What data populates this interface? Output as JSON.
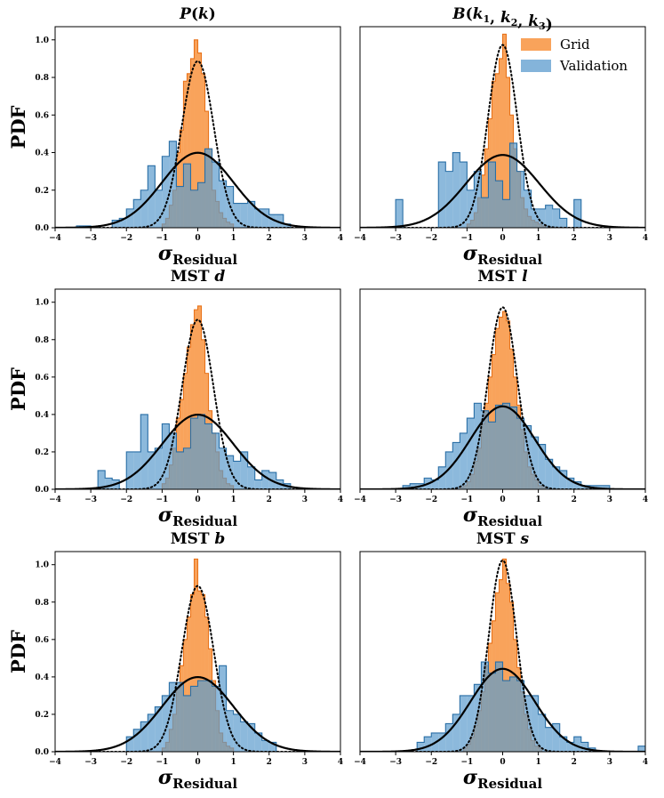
{
  "figure": {
    "ylabel": "PDF",
    "xlabel_symbol": "σ",
    "xlabel_sub": "Residual",
    "legend": {
      "grid": "Grid",
      "validation": "Validation",
      "placement": "top-right of panel 2"
    }
  },
  "colors": {
    "grid_fill": "#f9a35b",
    "grid_edge": "#e8731b",
    "val_fill": "#5b9bcd",
    "val_edge": "#2a6fa6",
    "overlap": "#8c8f8a"
  },
  "chart_data": [
    {
      "type": "histogram",
      "title_parts": [
        {
          "t": "P",
          "it": true
        },
        {
          "t": "(",
          "it": false
        },
        {
          "t": "k",
          "it": true
        },
        {
          "t": ")",
          "it": false
        }
      ],
      "xlim": [
        -4,
        4
      ],
      "ylim": [
        0,
        1.07
      ],
      "xticks": [
        "−4",
        "−3",
        "−2",
        "−1",
        "0",
        "1",
        "2",
        "3",
        "4"
      ],
      "yticks": [
        "0.0",
        "0.2",
        "0.4",
        "0.6",
        "0.8",
        "1.0"
      ],
      "grid": false,
      "grid_hist": {
        "edges": [
          -1.0,
          -0.9,
          -0.8,
          -0.7,
          -0.6,
          -0.5,
          -0.4,
          -0.3,
          -0.2,
          -0.1,
          0.0,
          0.1,
          0.2,
          0.3,
          0.4,
          0.5,
          0.6,
          0.7,
          0.8,
          0.9,
          1.0
        ],
        "density": [
          0.02,
          0.05,
          0.12,
          0.2,
          0.4,
          0.52,
          0.78,
          0.82,
          0.9,
          1.0,
          0.93,
          0.82,
          0.62,
          0.42,
          0.2,
          0.14,
          0.08,
          0.05,
          0.03,
          0.02
        ]
      },
      "val_hist": {
        "edges": [
          -3.4,
          -3.2,
          -3.0,
          -2.8,
          -2.6,
          -2.4,
          -2.2,
          -2.0,
          -1.8,
          -1.6,
          -1.4,
          -1.2,
          -1.0,
          -0.8,
          -0.6,
          -0.4,
          -0.2,
          0.0,
          0.2,
          0.4,
          0.6,
          0.8,
          1.0,
          1.2,
          1.4,
          1.6,
          1.8,
          2.0,
          2.2,
          2.4,
          2.6
        ],
        "density": [
          0.01,
          0.01,
          0,
          0,
          0,
          0.04,
          0.05,
          0.1,
          0.15,
          0.2,
          0.33,
          0.2,
          0.38,
          0.46,
          0.22,
          0.34,
          0.2,
          0.24,
          0.42,
          0.35,
          0.25,
          0.22,
          0.13,
          0.13,
          0.14,
          0.1,
          0.1,
          0.07,
          0.07,
          0.02
        ]
      },
      "gaussian_solid": {
        "mu": 0,
        "sigma": 1.0
      },
      "gaussian_dotted": {
        "mu": 0,
        "sigma": 0.45
      }
    },
    {
      "type": "histogram",
      "title_parts": [
        {
          "t": "B",
          "it": true
        },
        {
          "t": "(",
          "it": false
        },
        {
          "t": "k",
          "it": true
        },
        {
          "t": "1",
          "it": false,
          "sub": true
        },
        {
          "t": ", ",
          "it": false
        },
        {
          "t": "k",
          "it": true
        },
        {
          "t": "2",
          "it": false,
          "sub": true
        },
        {
          "t": ", ",
          "it": false
        },
        {
          "t": "k",
          "it": true
        },
        {
          "t": "3",
          "it": false,
          "sub": true
        },
        {
          "t": ")",
          "it": false
        }
      ],
      "xlim": [
        -4,
        4
      ],
      "ylim": [
        0,
        1.07
      ],
      "xticks": [
        "−4",
        "−3",
        "−2",
        "−1",
        "0",
        "1",
        "2",
        "3",
        "4"
      ],
      "yticks": [],
      "grid": false,
      "legend": true,
      "grid_hist": {
        "edges": [
          -1.0,
          -0.9,
          -0.8,
          -0.7,
          -0.6,
          -0.5,
          -0.4,
          -0.3,
          -0.2,
          -0.1,
          0.0,
          0.1,
          0.2,
          0.3,
          0.4,
          0.5,
          0.6,
          0.7,
          0.8,
          0.9,
          1.0,
          1.1,
          1.2
        ],
        "density": [
          0.02,
          0.04,
          0.08,
          0.16,
          0.28,
          0.42,
          0.58,
          0.78,
          0.82,
          0.9,
          1.03,
          0.8,
          0.6,
          0.42,
          0.3,
          0.16,
          0.1,
          0.06,
          0.04,
          0.03,
          0.02,
          0.01
        ]
      },
      "val_hist": {
        "edges": [
          -3.0,
          -2.8,
          -2.6,
          -2.4,
          -2.2,
          -2.0,
          -1.8,
          -1.6,
          -1.4,
          -1.2,
          -1.0,
          -0.8,
          -0.6,
          -0.4,
          -0.2,
          0.0,
          0.2,
          0.4,
          0.6,
          0.8,
          1.0,
          1.2,
          1.4,
          1.6,
          1.8,
          2.0,
          2.2,
          2.4
        ],
        "density": [
          0.15,
          0,
          0,
          0,
          0,
          0,
          0.35,
          0.3,
          0.4,
          0.35,
          0.2,
          0.3,
          0.16,
          0.35,
          0.25,
          0.15,
          0.45,
          0.3,
          0.2,
          0.1,
          0.1,
          0.12,
          0.1,
          0.05,
          0,
          0.15,
          0
        ]
      },
      "gaussian_solid": {
        "mu": 0,
        "sigma": 1.03
      },
      "gaussian_dotted": {
        "mu": 0,
        "sigma": 0.41
      }
    },
    {
      "type": "histogram",
      "title_parts": [
        {
          "t": "MST ",
          "it": false
        },
        {
          "t": "d",
          "it": true
        }
      ],
      "xlim": [
        -4,
        4
      ],
      "ylim": [
        0,
        1.07
      ],
      "xticks": [
        "−4",
        "−3",
        "−2",
        "−1",
        "0",
        "1",
        "2",
        "3",
        "4"
      ],
      "yticks": [
        "0.0",
        "0.2",
        "0.4",
        "0.6",
        "0.8",
        "1.0"
      ],
      "grid": false,
      "grid_hist": {
        "edges": [
          -1.0,
          -0.9,
          -0.8,
          -0.7,
          -0.6,
          -0.5,
          -0.4,
          -0.3,
          -0.2,
          -0.1,
          0.0,
          0.1,
          0.2,
          0.3,
          0.4,
          0.5,
          0.6,
          0.7,
          0.8,
          0.9,
          1.0
        ],
        "density": [
          0.03,
          0.06,
          0.13,
          0.22,
          0.38,
          0.48,
          0.62,
          0.76,
          0.88,
          0.96,
          0.98,
          0.8,
          0.62,
          0.42,
          0.3,
          0.2,
          0.1,
          0.06,
          0.03,
          0.02
        ]
      },
      "val_hist": {
        "edges": [
          -2.8,
          -2.6,
          -2.4,
          -2.2,
          -2.0,
          -1.8,
          -1.6,
          -1.4,
          -1.2,
          -1.0,
          -0.8,
          -0.6,
          -0.4,
          -0.2,
          0.0,
          0.2,
          0.4,
          0.6,
          0.8,
          1.0,
          1.2,
          1.4,
          1.6,
          1.8,
          2.0,
          2.2,
          2.4,
          2.6
        ],
        "density": [
          0.1,
          0.06,
          0.05,
          0,
          0.2,
          0.2,
          0.4,
          0.2,
          0.22,
          0.35,
          0.3,
          0.2,
          0.22,
          0.38,
          0.4,
          0.35,
          0.3,
          0.22,
          0.18,
          0.15,
          0.2,
          0.12,
          0.05,
          0.1,
          0.09,
          0.05,
          0.03
        ]
      },
      "gaussian_solid": {
        "mu": 0,
        "sigma": 1.0
      },
      "gaussian_dotted": {
        "mu": 0,
        "sigma": 0.44
      }
    },
    {
      "type": "histogram",
      "title_parts": [
        {
          "t": "MST ",
          "it": false
        },
        {
          "t": "l",
          "it": true
        }
      ],
      "xlim": [
        -4,
        4
      ],
      "ylim": [
        0,
        1.07
      ],
      "xticks": [
        "−4",
        "−3",
        "−2",
        "−1",
        "0",
        "1",
        "2",
        "3",
        "4"
      ],
      "yticks": [],
      "grid": false,
      "grid_hist": {
        "edges": [
          -1.2,
          -1.1,
          -1.0,
          -0.9,
          -0.8,
          -0.7,
          -0.6,
          -0.5,
          -0.4,
          -0.3,
          -0.2,
          -0.1,
          0.0,
          0.1,
          0.2,
          0.3,
          0.4,
          0.5,
          0.6,
          0.7,
          0.8,
          0.9,
          1.0,
          1.1,
          1.2
        ],
        "density": [
          0.01,
          0.02,
          0.04,
          0.08,
          0.15,
          0.22,
          0.35,
          0.46,
          0.6,
          0.72,
          0.86,
          0.92,
          0.95,
          0.9,
          0.75,
          0.6,
          0.45,
          0.32,
          0.2,
          0.12,
          0.08,
          0.05,
          0.02,
          0.01
        ]
      },
      "val_hist": {
        "edges": [
          -2.8,
          -2.6,
          -2.4,
          -2.2,
          -2.0,
          -1.8,
          -1.6,
          -1.4,
          -1.2,
          -1.0,
          -0.8,
          -0.6,
          -0.4,
          -0.2,
          0.0,
          0.2,
          0.4,
          0.6,
          0.8,
          1.0,
          1.2,
          1.4,
          1.6,
          1.8,
          2.0,
          2.2,
          2.4,
          2.6,
          2.8,
          3.0
        ],
        "density": [
          0.02,
          0.03,
          0.03,
          0.06,
          0.05,
          0.12,
          0.2,
          0.25,
          0.3,
          0.38,
          0.46,
          0.42,
          0.36,
          0.45,
          0.46,
          0.44,
          0.38,
          0.34,
          0.28,
          0.24,
          0.16,
          0.12,
          0.1,
          0.06,
          0.04,
          0.02,
          0.02,
          0.02,
          0.02
        ]
      },
      "gaussian_solid": {
        "mu": 0,
        "sigma": 0.9
      },
      "gaussian_dotted": {
        "mu": 0,
        "sigma": 0.41
      }
    },
    {
      "type": "histogram",
      "title_parts": [
        {
          "t": "MST ",
          "it": false
        },
        {
          "t": "b",
          "it": true
        }
      ],
      "xlim": [
        -4,
        4
      ],
      "ylim": [
        0,
        1.07
      ],
      "xticks": [
        "−4",
        "−3",
        "−2",
        "−1",
        "0",
        "1",
        "2",
        "3",
        "4"
      ],
      "yticks": [
        "0.0",
        "0.2",
        "0.4",
        "0.6",
        "0.8",
        "1.0"
      ],
      "grid": false,
      "grid_hist": {
        "edges": [
          -1.0,
          -0.9,
          -0.8,
          -0.7,
          -0.6,
          -0.5,
          -0.4,
          -0.3,
          -0.2,
          -0.1,
          0.0,
          0.1,
          0.2,
          0.3,
          0.4,
          0.5,
          0.6,
          0.7,
          0.8,
          0.9,
          1.0
        ],
        "density": [
          0.02,
          0.05,
          0.12,
          0.2,
          0.34,
          0.46,
          0.6,
          0.72,
          0.84,
          1.03,
          0.86,
          0.84,
          0.72,
          0.55,
          0.38,
          0.22,
          0.1,
          0.05,
          0.03,
          0.02
        ]
      },
      "val_hist": {
        "edges": [
          -2.0,
          -1.8,
          -1.6,
          -1.4,
          -1.2,
          -1.0,
          -0.8,
          -0.6,
          -0.4,
          -0.2,
          0.0,
          0.2,
          0.4,
          0.6,
          0.8,
          1.0,
          1.2,
          1.4,
          1.6,
          1.8,
          2.0,
          2.2
        ],
        "density": [
          0.08,
          0.12,
          0.16,
          0.2,
          0.24,
          0.3,
          0.37,
          0.37,
          0.3,
          0.35,
          0.38,
          0.38,
          0.35,
          0.46,
          0.22,
          0.2,
          0.16,
          0.15,
          0.1,
          0.06,
          0.05
        ]
      },
      "gaussian_solid": {
        "mu": 0,
        "sigma": 1.0
      },
      "gaussian_dotted": {
        "mu": 0,
        "sigma": 0.45
      }
    },
    {
      "type": "histogram",
      "title_parts": [
        {
          "t": "MST ",
          "it": false
        },
        {
          "t": "s",
          "it": true
        }
      ],
      "xlim": [
        -4,
        4
      ],
      "ylim": [
        0,
        1.07
      ],
      "xticks": [
        "−4",
        "−3",
        "−2",
        "−1",
        "0",
        "1",
        "2",
        "3",
        "4"
      ],
      "yticks": [],
      "grid": false,
      "grid_hist": {
        "edges": [
          -1.1,
          -1.0,
          -0.9,
          -0.8,
          -0.7,
          -0.6,
          -0.5,
          -0.4,
          -0.3,
          -0.2,
          -0.1,
          0.0,
          0.1,
          0.2,
          0.3,
          0.4,
          0.5,
          0.6,
          0.7,
          0.8,
          0.9,
          1.0,
          1.1
        ],
        "density": [
          0.02,
          0.04,
          0.08,
          0.14,
          0.22,
          0.32,
          0.46,
          0.58,
          0.7,
          0.85,
          0.92,
          1.03,
          0.9,
          0.8,
          0.6,
          0.45,
          0.32,
          0.2,
          0.12,
          0.06,
          0.03,
          0.02
        ]
      },
      "val_hist": {
        "edges": [
          -2.4,
          -2.2,
          -2.0,
          -1.8,
          -1.6,
          -1.4,
          -1.2,
          -1.0,
          -0.8,
          -0.6,
          -0.4,
          -0.2,
          0.0,
          0.2,
          0.4,
          0.6,
          0.8,
          1.0,
          1.2,
          1.4,
          1.6,
          1.8,
          2.0,
          2.2,
          2.4,
          2.6,
          2.8,
          3.0,
          3.2,
          3.4,
          3.6,
          3.8,
          4.0
        ],
        "density": [
          0.05,
          0.08,
          0.1,
          0.1,
          0.15,
          0.2,
          0.3,
          0.3,
          0.36,
          0.48,
          0.42,
          0.48,
          0.38,
          0.4,
          0.38,
          0.3,
          0.3,
          0.2,
          0.13,
          0.15,
          0.08,
          0.05,
          0.08,
          0.05,
          0.02,
          0,
          0,
          0,
          0,
          0,
          0,
          0.03
        ]
      },
      "gaussian_solid": {
        "mu": 0,
        "sigma": 0.9
      },
      "gaussian_dotted": {
        "mu": 0,
        "sigma": 0.39
      }
    }
  ]
}
